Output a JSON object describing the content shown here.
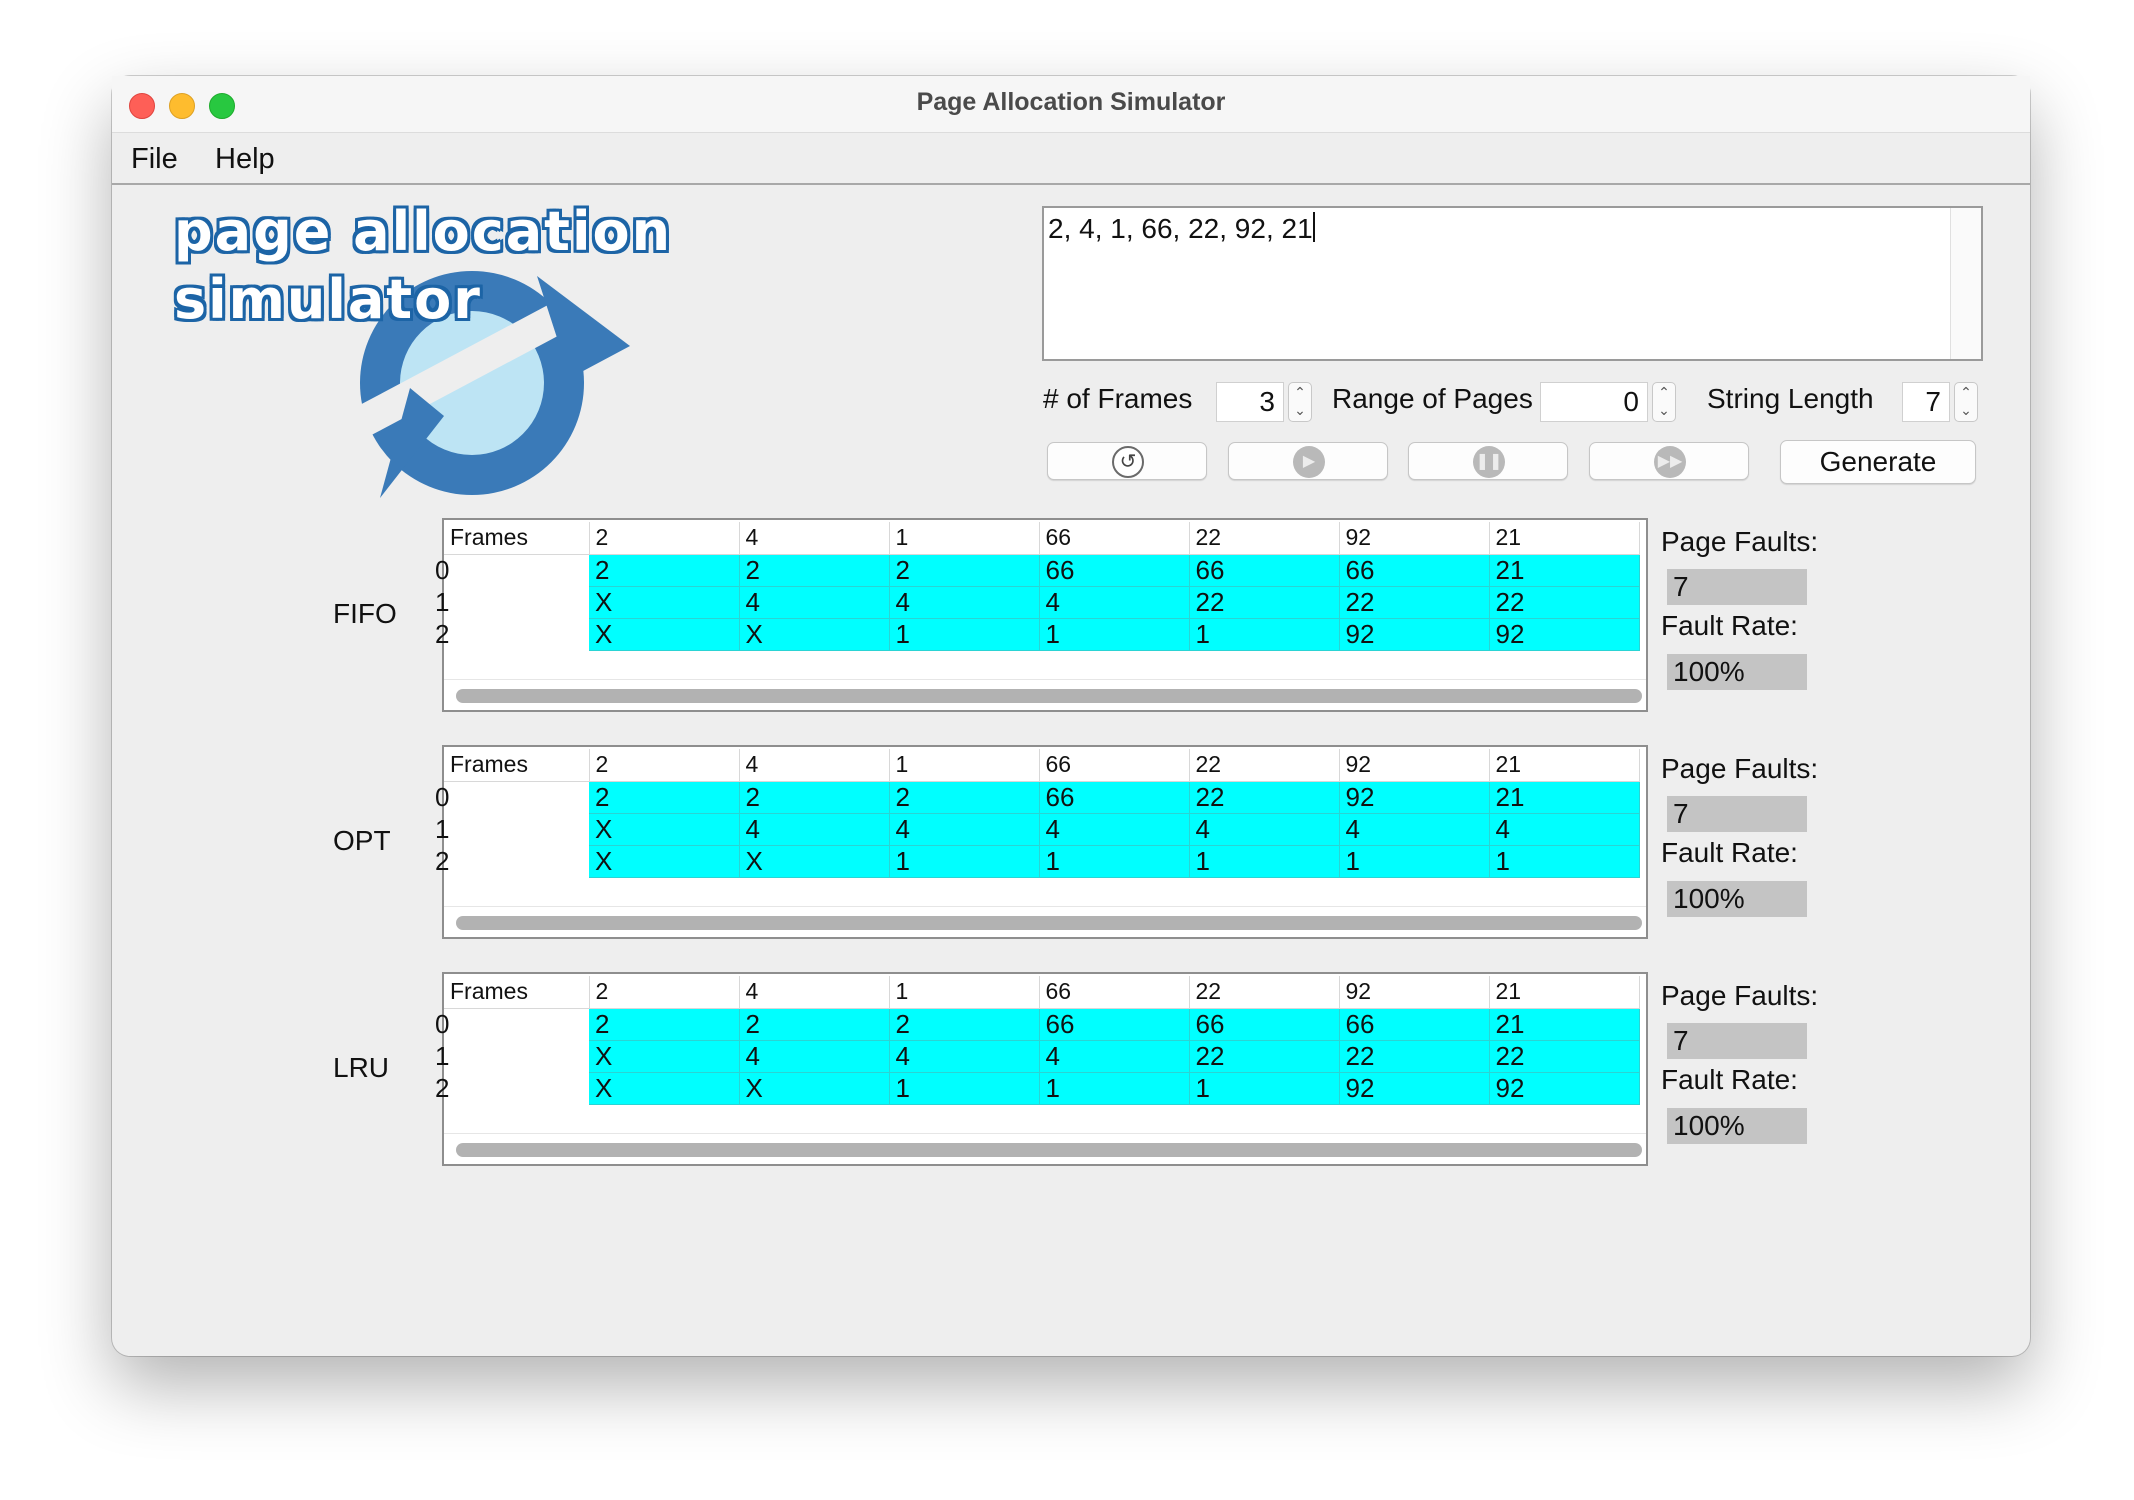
{
  "window": {
    "title": "Page Allocation Simulator"
  },
  "menu": {
    "file": "File",
    "help": "Help"
  },
  "logo": {
    "line1": "page allocation",
    "line2": "simulator"
  },
  "input": {
    "reference_string": "2, 4, 1, 66, 22, 92, 21"
  },
  "controls": {
    "frames_label": "# of Frames",
    "frames_value": "3",
    "range_label": "Range of Pages",
    "range_value": "0",
    "length_label": "String Length",
    "length_value": "7",
    "generate_label": "Generate"
  },
  "stats_labels": {
    "faults": "Page Faults:",
    "rate": "Fault Rate:"
  },
  "header": [
    "Frames",
    "2",
    "4",
    "1",
    "66",
    "22",
    "92",
    "21"
  ],
  "algorithms": [
    {
      "name": "FIFO",
      "rows": [
        {
          "label": "0",
          "cells": [
            "2",
            "2",
            "2",
            "66",
            "66",
            "66",
            "21"
          ]
        },
        {
          "label": "1",
          "cells": [
            "X",
            "4",
            "4",
            "4",
            "22",
            "22",
            "22"
          ]
        },
        {
          "label": "2",
          "cells": [
            "X",
            "X",
            "1",
            "1",
            "1",
            "92",
            "92"
          ]
        }
      ],
      "page_faults": "7",
      "fault_rate": "100%"
    },
    {
      "name": "OPT",
      "rows": [
        {
          "label": "0",
          "cells": [
            "2",
            "2",
            "2",
            "66",
            "22",
            "92",
            "21"
          ]
        },
        {
          "label": "1",
          "cells": [
            "X",
            "4",
            "4",
            "4",
            "4",
            "4",
            "4"
          ]
        },
        {
          "label": "2",
          "cells": [
            "X",
            "X",
            "1",
            "1",
            "1",
            "1",
            "1"
          ]
        }
      ],
      "page_faults": "7",
      "fault_rate": "100%"
    },
    {
      "name": "LRU",
      "rows": [
        {
          "label": "0",
          "cells": [
            "2",
            "2",
            "2",
            "66",
            "66",
            "66",
            "21"
          ]
        },
        {
          "label": "1",
          "cells": [
            "X",
            "4",
            "4",
            "4",
            "22",
            "22",
            "22"
          ]
        },
        {
          "label": "2",
          "cells": [
            "X",
            "X",
            "1",
            "1",
            "1",
            "92",
            "92"
          ]
        }
      ],
      "page_faults": "7",
      "fault_rate": "100%"
    }
  ],
  "colors": {
    "cell_bg": "#00ffff",
    "window_bg": "#eeeeee",
    "logo_blue": "#3a7ab8",
    "logo_light": "#bde4f4"
  }
}
